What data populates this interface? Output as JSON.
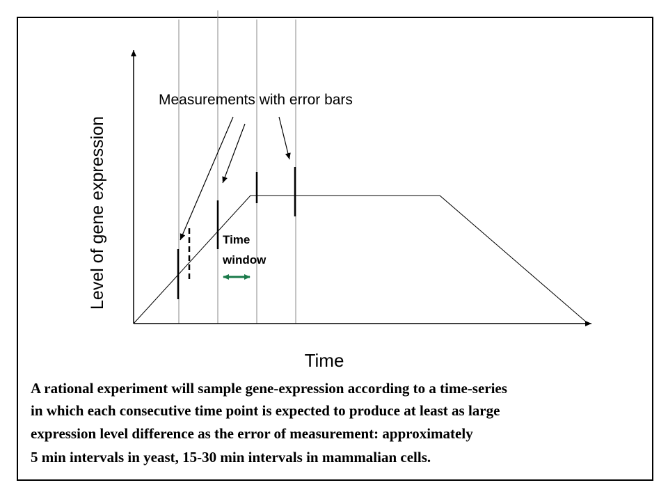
{
  "diagram": {
    "y_axis_label": "Level of gene expression",
    "x_axis_label": "Time",
    "annotation": "Measurements with error bars",
    "time_window_lines": [
      "Time",
      "window"
    ],
    "caption_lines": [
      "A rational experiment will sample gene-expression according to a time-series",
      "in which each consecutive time point is expected to produce at least as large",
      "expression level difference as the error of measurement: approximately",
      "5 min intervals in yeast, 15-30 min intervals in mammalian cells."
    ]
  }
}
